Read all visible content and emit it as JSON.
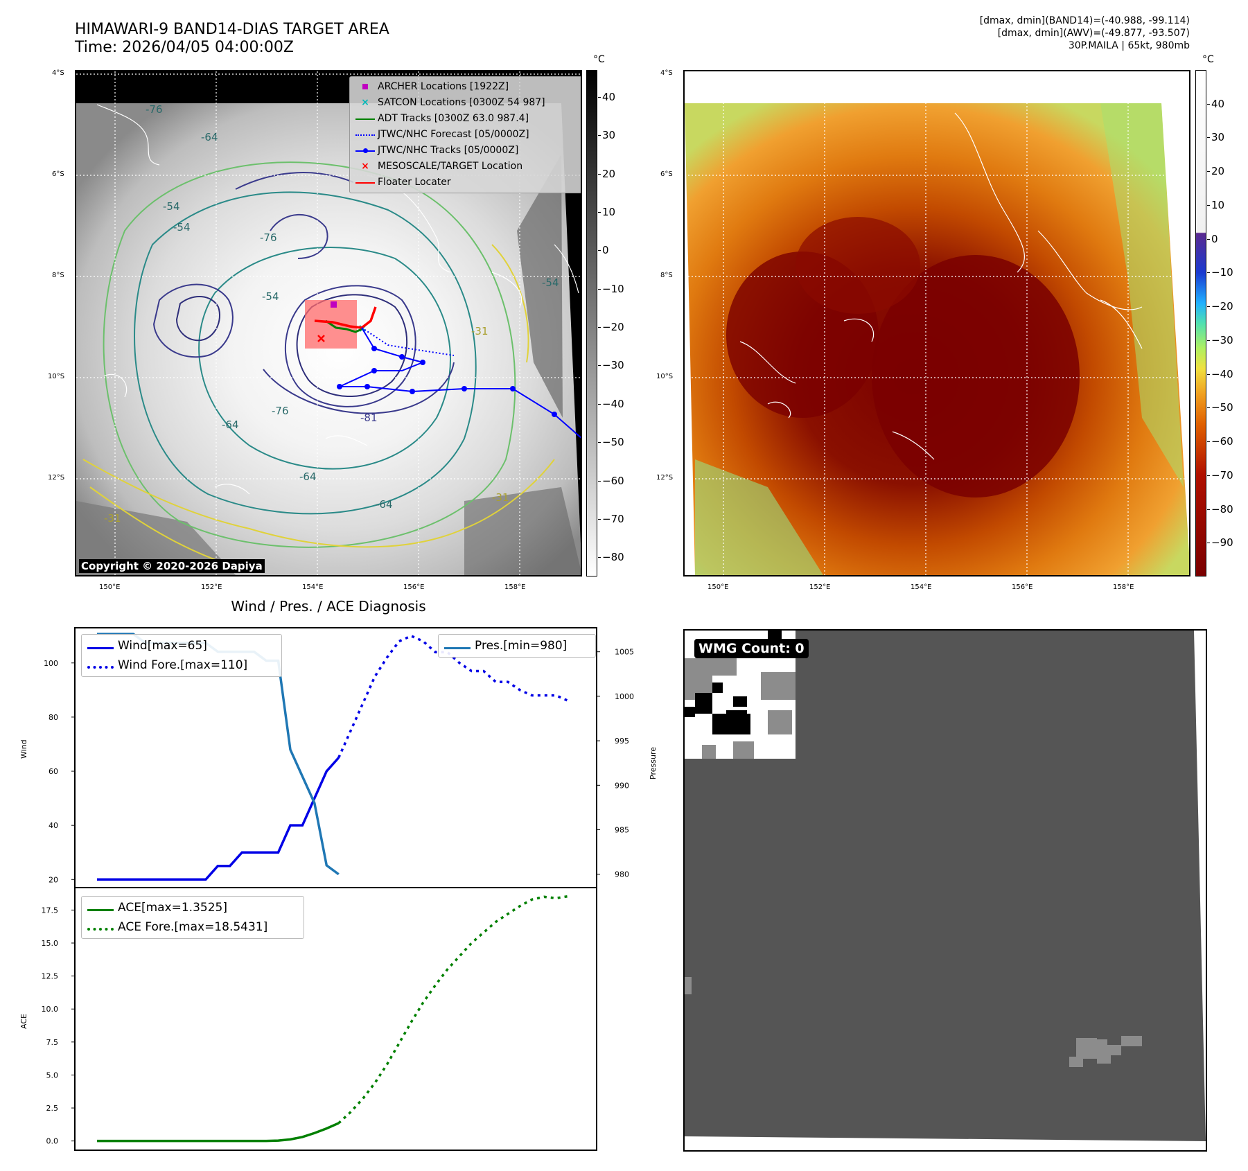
{
  "header": {
    "title_line1": "HIMAWARI-9 BAND14-DIAS TARGET AREA",
    "title_line2": "Time: 2026/04/05 04:00:00Z",
    "info_line1": "[dmax, dmin](BAND14)=(-40.988, -99.114)",
    "info_line2": "[dmax, dmin](AWV)=(-49.877, -93.507)",
    "info_line3": "30P.MAILA | 65kt, 980mb"
  },
  "map_axes": {
    "lat_labels": [
      "4°S",
      "6°S",
      "8°S",
      "10°S",
      "12°S"
    ],
    "lon_labels": [
      "150°E",
      "152°E",
      "154°E",
      "156°E",
      "158°E"
    ]
  },
  "ir_panel": {
    "legend": [
      {
        "label": "ARCHER Locations [1922Z]",
        "color": "#c000c0",
        "symbol": "square"
      },
      {
        "label": "SATCON Locations [0300Z 54 987]",
        "color": "#00b8b8",
        "symbol": "x"
      },
      {
        "label": "ADT Tracks [0300Z 63.0 987.4]",
        "color": "#008000",
        "symbol": "line"
      },
      {
        "label": "JTWC/NHC Forecast [05/0000Z]",
        "color": "#0000ff",
        "symbol": "dotted"
      },
      {
        "label": "JTWC/NHC Tracks [05/0000Z]",
        "color": "#0000ff",
        "symbol": "line-dot"
      },
      {
        "label": "MESOSCALE/TARGET Location",
        "color": "#ff0000",
        "symbol": "x"
      },
      {
        "label": "Floater Locater",
        "color": "#ff0000",
        "symbol": "line"
      }
    ],
    "contour_labels": [
      "-76",
      "-64",
      "-54",
      "-54",
      "-76",
      "-54",
      "-76",
      "-81",
      "-64",
      "-64",
      "-64",
      "-31",
      "-31",
      "-31",
      "-54"
    ],
    "copyright": "Copyright © 2020-2026 Dapiya",
    "colorbar": {
      "unit": "°C",
      "ticks": [
        "40",
        "30",
        "20",
        "10",
        "0",
        "−10",
        "−20",
        "−30",
        "−40",
        "−50",
        "−60",
        "−70",
        "−80"
      ]
    }
  },
  "awv_panel": {
    "colorbar": {
      "unit": "°C",
      "ticks": [
        "40",
        "30",
        "20",
        "10",
        "0",
        "−10",
        "−20",
        "−30",
        "−40",
        "−50",
        "−60",
        "−70",
        "−80",
        "−90"
      ]
    }
  },
  "chart_data": [
    {
      "type": "line",
      "title": "Wind / Pres. / ACE Diagnosis",
      "ylabel": "Wind",
      "y2label": "Pressure",
      "ylim": [
        17,
        113
      ],
      "y2lim": [
        978.5,
        1007.7
      ],
      "yticks": [
        "20",
        "40",
        "60",
        "80",
        "100"
      ],
      "y2ticks": [
        "980",
        "985",
        "990",
        "995",
        "1000",
        "1005"
      ],
      "series": [
        {
          "name": "Wind[max=65]",
          "axis": "left",
          "color": "#0000e6",
          "style": "solid",
          "x": [
            0,
            1,
            2,
            3,
            4,
            5,
            6,
            7,
            8,
            9,
            10,
            11,
            12,
            13,
            14,
            15,
            16,
            17,
            18,
            19,
            20
          ],
          "y": [
            20,
            20,
            20,
            20,
            20,
            20,
            20,
            20,
            20,
            20,
            25,
            25,
            30,
            30,
            30,
            30,
            40,
            40,
            50,
            60,
            65
          ]
        },
        {
          "name": "Wind Fore.[max=110]",
          "axis": "left",
          "color": "#0000e6",
          "style": "dotted",
          "x": [
            20,
            21,
            22,
            23,
            24,
            25,
            26,
            27,
            28,
            29,
            30,
            31,
            32,
            33,
            34,
            35,
            36,
            37,
            38,
            39
          ],
          "y": [
            65,
            75,
            85,
            95,
            102,
            108,
            110,
            108,
            104,
            104,
            100,
            97,
            97,
            93,
            93,
            90,
            88,
            88,
            88,
            86
          ]
        },
        {
          "name": "Pres.[min=980]",
          "axis": "right",
          "color": "#1f77b4",
          "style": "solid",
          "x": [
            0,
            1,
            2,
            3,
            4,
            5,
            6,
            7,
            8,
            9,
            10,
            11,
            12,
            13,
            14,
            15,
            16,
            17,
            18,
            19,
            20
          ],
          "y": [
            1007,
            1007,
            1007,
            1007,
            1006,
            1006,
            1006,
            1006,
            1006,
            1006,
            1005,
            1005,
            1005,
            1005,
            1004,
            1004,
            994,
            991,
            988,
            981,
            980
          ]
        }
      ]
    },
    {
      "type": "line",
      "ylabel": "ACE",
      "ylim": [
        -0.7,
        19.2
      ],
      "yticks": [
        "0.0",
        "2.5",
        "5.0",
        "7.5",
        "10.0",
        "12.5",
        "15.0",
        "17.5"
      ],
      "series": [
        {
          "name": "ACE[max=1.3525]",
          "color": "#008000",
          "style": "solid",
          "x": [
            0,
            2,
            4,
            6,
            8,
            10,
            12,
            14,
            15,
            16,
            17,
            18,
            19,
            20
          ],
          "y": [
            0,
            0,
            0,
            0,
            0,
            0,
            0,
            0,
            0.03,
            0.12,
            0.3,
            0.6,
            0.95,
            1.35
          ]
        },
        {
          "name": "ACE Fore.[max=18.5431]",
          "color": "#008000",
          "style": "dotted",
          "x": [
            20,
            21,
            22,
            23,
            24,
            25,
            26,
            27,
            28,
            29,
            30,
            31,
            32,
            33,
            34,
            35,
            36,
            37,
            38,
            39
          ],
          "y": [
            1.35,
            2.2,
            3.2,
            4.4,
            5.8,
            7.4,
            9.0,
            10.5,
            11.8,
            13.0,
            14.0,
            15.0,
            15.8,
            16.6,
            17.2,
            17.8,
            18.3,
            18.5,
            18.4,
            18.54
          ]
        }
      ]
    }
  ],
  "wmg_panel": {
    "label": "WMG Count: 0"
  }
}
